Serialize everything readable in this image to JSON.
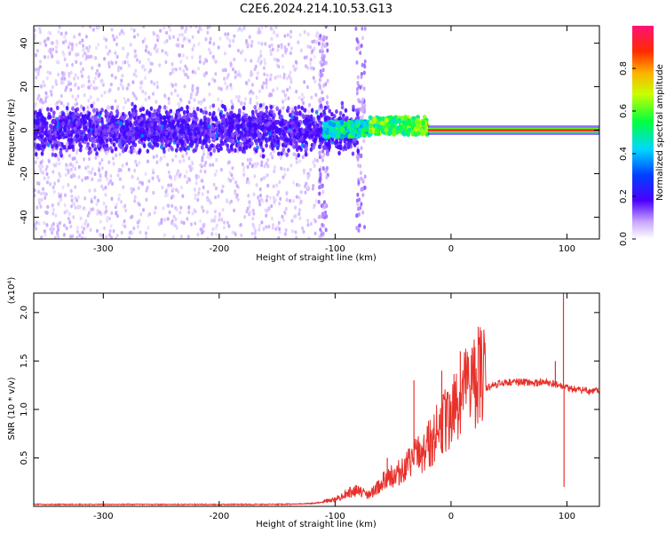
{
  "title": "C2E6.2024.214.10.53.G13",
  "chart_data": [
    {
      "type": "heatmap",
      "xlabel": "Height of straight line (km)",
      "ylabel": "Frequency (Hz)",
      "xlim": [
        -360,
        128
      ],
      "ylim": [
        -50,
        48
      ],
      "xticks": [
        -300,
        -200,
        -100,
        0,
        100
      ],
      "yticks": [
        -40,
        -20,
        0,
        20,
        40
      ],
      "colorbar": {
        "label": "Normalized spectral amplitude",
        "ticks": [
          0.0,
          0.2,
          0.4,
          0.6,
          0.8
        ],
        "range": [
          0,
          1
        ]
      },
      "features": [
        {
          "x_range": [
            -360,
            -110
          ],
          "freq_core": [
            -8,
            8
          ],
          "freq_spread": [
            -50,
            48
          ],
          "amplitude": 0.15
        },
        {
          "x_range": [
            -110,
            -70
          ],
          "freq_core": [
            -3,
            4
          ],
          "amplitude": 0.45
        },
        {
          "x_range": [
            -70,
            -20
          ],
          "freq_core": [
            -2,
            6
          ],
          "amplitude": 0.55
        },
        {
          "x_range": [
            -20,
            128
          ],
          "freq_core": [
            -1,
            1
          ],
          "amplitude": 0.9
        }
      ],
      "vertical_streaks": [
        {
          "x": -78,
          "freq_range": [
            -50,
            48
          ]
        },
        {
          "x": -110,
          "freq_range": [
            -50,
            48
          ]
        }
      ]
    },
    {
      "type": "line",
      "xlabel": "Height of straight line (km)",
      "ylabel": "SNR (10 * v/v)",
      "yunit": "(x10⁴)",
      "xlim": [
        -360,
        128
      ],
      "ylim": [
        0,
        2.2
      ],
      "xticks": [
        -300,
        -200,
        -100,
        0,
        100
      ],
      "yticks": [
        0.5,
        1.0,
        1.5,
        2.0
      ],
      "ytick_labels": [
        "0.5",
        "1.0",
        "1.5",
        "2.0"
      ],
      "color": "#e8302a",
      "series": [
        {
          "x": [
            -360,
            -300,
            -250,
            -200,
            -150,
            -120,
            -100,
            -90,
            -80,
            -70,
            -60,
            -50,
            -40,
            -30,
            -20,
            -10,
            0,
            10,
            20,
            30,
            40,
            50,
            60,
            70,
            80,
            90,
            95,
            100,
            110,
            120,
            128
          ],
          "values": [
            0.02,
            0.02,
            0.02,
            0.02,
            0.02,
            0.03,
            0.06,
            0.12,
            0.15,
            0.1,
            0.22,
            0.28,
            0.35,
            0.45,
            0.55,
            0.7,
            0.85,
            1.0,
            1.15,
            1.22,
            1.26,
            1.28,
            1.28,
            1.27,
            1.28,
            1.26,
            1.24,
            1.22,
            1.2,
            1.19,
            1.18
          ]
        }
      ],
      "spikes": [
        {
          "x": 97,
          "value": 2.2
        },
        {
          "x": 97.5,
          "value": 0.2
        },
        {
          "x": 8,
          "value": 1.6
        },
        {
          "x": -8,
          "value": 1.4
        },
        {
          "x": -32,
          "value": 1.3
        },
        {
          "x": -55,
          "value": 0.5
        },
        {
          "x": 90,
          "value": 1.5
        }
      ]
    }
  ]
}
